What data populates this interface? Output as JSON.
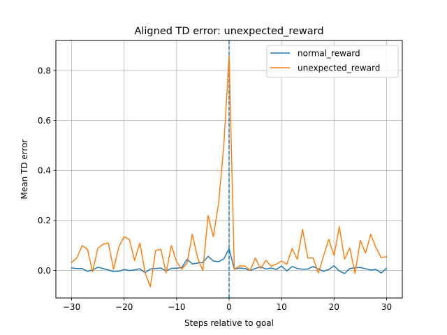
{
  "chart_data": {
    "type": "line",
    "title": "Aligned TD error: unexpected_reward",
    "xlabel": "Steps relative to goal",
    "ylabel": "Mean TD error",
    "xlim": [
      -33,
      33
    ],
    "ylim": [
      -0.11,
      0.92
    ],
    "xticks": [
      -30,
      -20,
      -10,
      0,
      10,
      20,
      30
    ],
    "yticks": [
      0.0,
      0.2,
      0.4,
      0.6,
      0.8
    ],
    "ytick_labels": [
      "0.0",
      "0.2",
      "0.4",
      "0.6",
      "0.8"
    ],
    "grid": true,
    "legend_position": "top-right",
    "vline": {
      "x": 0,
      "style": "dashed",
      "color": "#1f77b4"
    },
    "x": [
      -30,
      -29,
      -28,
      -27,
      -26,
      -25,
      -24,
      -23,
      -22,
      -21,
      -20,
      -19,
      -18,
      -17,
      -16,
      -15,
      -14,
      -13,
      -12,
      -11,
      -10,
      -9,
      -8,
      -7,
      -6,
      -5,
      -4,
      -3,
      -2,
      -1,
      0,
      1,
      2,
      3,
      4,
      5,
      6,
      7,
      8,
      9,
      10,
      11,
      12,
      13,
      14,
      15,
      16,
      17,
      18,
      19,
      20,
      21,
      22,
      23,
      24,
      25,
      26,
      27,
      28,
      29,
      30
    ],
    "series": [
      {
        "name": "normal_reward",
        "color": "#1f77b4",
        "values": [
          0.01,
          0.008,
          0.008,
          -0.003,
          0.002,
          0.013,
          0.008,
          0.002,
          -0.004,
          -0.003,
          0.004,
          0.0,
          0.002,
          0.007,
          -0.009,
          0.006,
          0.008,
          0.01,
          -0.002,
          0.009,
          0.009,
          0.012,
          0.045,
          0.026,
          0.03,
          0.032,
          0.057,
          0.038,
          0.035,
          0.047,
          0.087,
          0.005,
          0.01,
          0.008,
          0.0,
          0.008,
          0.015,
          0.006,
          0.01,
          0.004,
          0.018,
          -0.002,
          0.016,
          0.008,
          0.005,
          0.006,
          0.016,
          0.006,
          -0.003,
          0.004,
          0.019,
          -0.002,
          -0.012,
          0.008,
          0.011,
          0.012,
          0.007,
          0.002,
          0.004,
          -0.01,
          0.009
        ]
      },
      {
        "name": "unexpected_reward",
        "color": "#ff7f0e",
        "values": [
          0.032,
          0.05,
          0.1,
          0.085,
          -0.005,
          0.09,
          0.105,
          0.11,
          0.005,
          0.095,
          0.135,
          0.125,
          0.04,
          0.11,
          -0.01,
          -0.065,
          0.08,
          0.085,
          -0.01,
          0.1,
          0.035,
          0.005,
          0.03,
          0.145,
          0.05,
          0.0,
          0.22,
          0.135,
          0.27,
          0.5,
          0.86,
          0.005,
          0.018,
          0.018,
          0.0,
          0.05,
          0.008,
          0.04,
          0.018,
          0.025,
          0.038,
          0.025,
          0.088,
          0.045,
          0.165,
          0.05,
          0.05,
          -0.01,
          0.058,
          0.125,
          0.06,
          0.175,
          0.045,
          0.09,
          -0.012,
          0.12,
          0.07,
          0.145,
          0.09,
          0.052,
          0.055
        ]
      }
    ]
  }
}
